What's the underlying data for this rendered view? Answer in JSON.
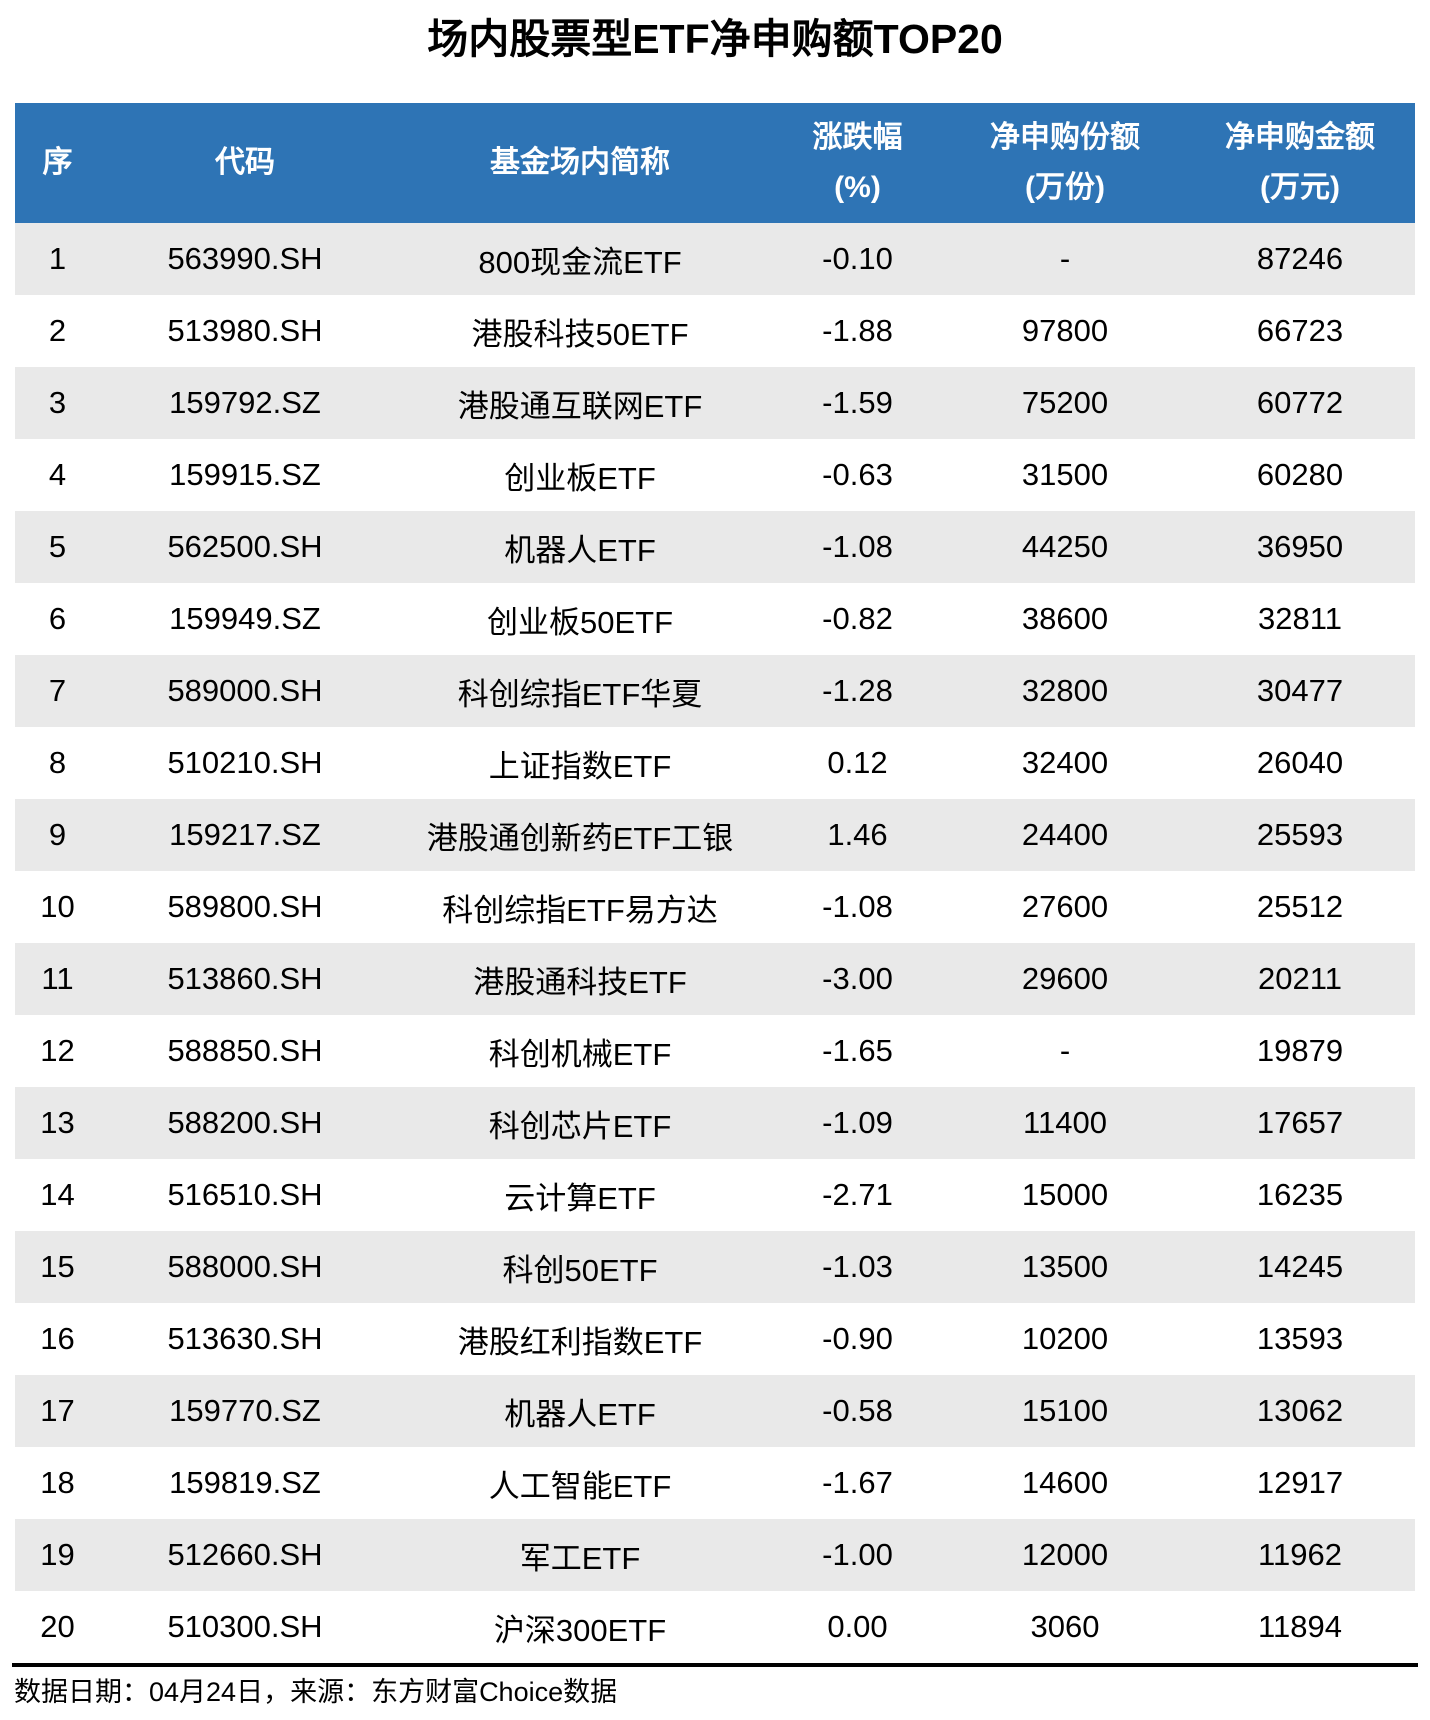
{
  "title": "场内股票型ETF净申购额TOP20",
  "footer": {
    "note": "数据日期：04月24日，来源：东方财富Choice数据"
  },
  "colors": {
    "header_bg": "#2E74B5",
    "header_text": "#FFFFFF",
    "row_alt_bg": "#E9E9E9",
    "body_text": "#000000",
    "divider": "#000000"
  },
  "chart_data": {
    "type": "table",
    "title": "场内股票型ETF净申购额TOP20",
    "columns": [
      {
        "id": "rank",
        "label": "序",
        "unit": ""
      },
      {
        "id": "code",
        "label": "代码",
        "unit": ""
      },
      {
        "id": "name",
        "label": "基金场内简称",
        "unit": ""
      },
      {
        "id": "change",
        "label": "涨跌幅",
        "unit": "(%)"
      },
      {
        "id": "shares",
        "label": "净申购份额",
        "unit": "(万份)"
      },
      {
        "id": "amount",
        "label": "净申购金额",
        "unit": "(万元)"
      }
    ],
    "rows": [
      [
        "1",
        "563990.SH",
        "800现金流ETF",
        "-0.10",
        "-",
        "87246"
      ],
      [
        "2",
        "513980.SH",
        "港股科技50ETF",
        "-1.88",
        "97800",
        "66723"
      ],
      [
        "3",
        "159792.SZ",
        "港股通互联网ETF",
        "-1.59",
        "75200",
        "60772"
      ],
      [
        "4",
        "159915.SZ",
        "创业板ETF",
        "-0.63",
        "31500",
        "60280"
      ],
      [
        "5",
        "562500.SH",
        "机器人ETF",
        "-1.08",
        "44250",
        "36950"
      ],
      [
        "6",
        "159949.SZ",
        "创业板50ETF",
        "-0.82",
        "38600",
        "32811"
      ],
      [
        "7",
        "589000.SH",
        "科创综指ETF华夏",
        "-1.28",
        "32800",
        "30477"
      ],
      [
        "8",
        "510210.SH",
        "上证指数ETF",
        "0.12",
        "32400",
        "26040"
      ],
      [
        "9",
        "159217.SZ",
        "港股通创新药ETF工银",
        "1.46",
        "24400",
        "25593"
      ],
      [
        "10",
        "589800.SH",
        "科创综指ETF易方达",
        "-1.08",
        "27600",
        "25512"
      ],
      [
        "11",
        "513860.SH",
        "港股通科技ETF",
        "-3.00",
        "29600",
        "20211"
      ],
      [
        "12",
        "588850.SH",
        "科创机械ETF",
        "-1.65",
        "-",
        "19879"
      ],
      [
        "13",
        "588200.SH",
        "科创芯片ETF",
        "-1.09",
        "11400",
        "17657"
      ],
      [
        "14",
        "516510.SH",
        "云计算ETF",
        "-2.71",
        "15000",
        "16235"
      ],
      [
        "15",
        "588000.SH",
        "科创50ETF",
        "-1.03",
        "13500",
        "14245"
      ],
      [
        "16",
        "513630.SH",
        "港股红利指数ETF",
        "-0.90",
        "10200",
        "13593"
      ],
      [
        "17",
        "159770.SZ",
        "机器人ETF",
        "-0.58",
        "15100",
        "13062"
      ],
      [
        "18",
        "159819.SZ",
        "人工智能ETF",
        "-1.67",
        "14600",
        "12917"
      ],
      [
        "19",
        "512660.SH",
        "军工ETF",
        "-1.00",
        "12000",
        "11962"
      ],
      [
        "20",
        "510300.SH",
        "沪深300ETF",
        "0.00",
        "3060",
        "11894"
      ]
    ]
  }
}
